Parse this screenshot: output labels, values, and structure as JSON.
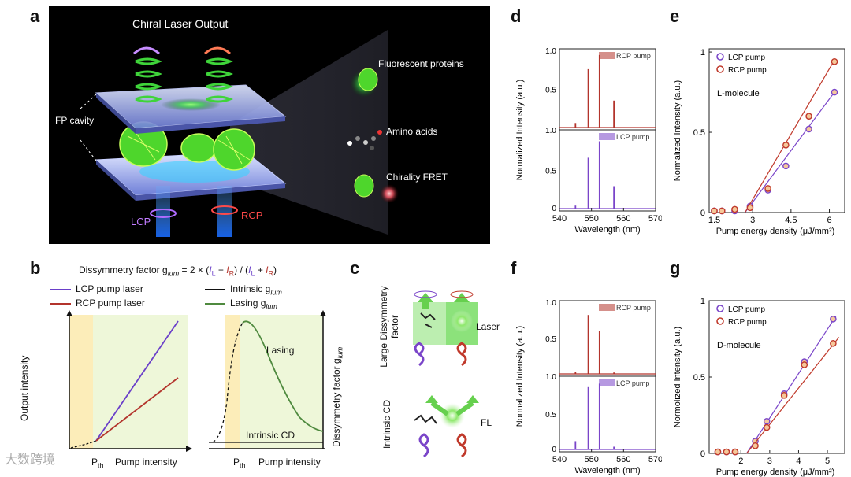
{
  "panels": {
    "a": "a",
    "b": "b",
    "c": "c",
    "d": "d",
    "e": "e",
    "f": "f",
    "g": "g"
  },
  "panel_a": {
    "title": "Chiral Laser Output",
    "cavity": "FP cavity",
    "fp": "Fluorescent proteins",
    "aa": "Amino acids",
    "fret": "Chirality FRET",
    "lcp": "LCP",
    "rcp": "RCP"
  },
  "panel_b": {
    "formula_prefix": "Dissymmetry factor g",
    "formula_sub": "lum",
    "formula_rest": " = 2 × (",
    "IL": "I",
    "IL_sub": "L",
    "minus": " − ",
    "IR": "I",
    "IR_sub": "R",
    "mid": ") / (",
    "plus": " + ",
    "end": ")",
    "legend_lcp": "LCP pump laser",
    "legend_rcp": "RCP pump laser",
    "legend_intrinsic": "Intrinsic g",
    "legend_lasing": "Lasing g",
    "legend_sub": "lum",
    "left_ylabel": "Output intensity",
    "left_xlabel": "Pump intensity",
    "left_pth": "P",
    "left_pth_sub": "th",
    "right_ylabel": "Dissymmetry factor  g",
    "right_ylabel_sub": "lum",
    "right_xlabel": "Pump intensity",
    "right_pth": "P",
    "right_pth_sub": "th",
    "lasing_label": "Lasing",
    "intrinsic_label": "Intrinsic CD",
    "colors": {
      "lcp": "#6a3fc9",
      "rcp": "#b3342c",
      "lasing": "#4f8a3f",
      "intrinsic": "#111111"
    }
  },
  "panel_c": {
    "top_label": "Large Dissymmetry factor",
    "top_right": "Laser",
    "bottom_label": "Intrinsic CD",
    "bottom_right": "FL"
  },
  "chart_data": [
    {
      "id": "d",
      "type": "line",
      "xlabel": "Wavelength (nm)",
      "ylabel": "Normalized Intensity (a.u.)",
      "xlim": [
        540,
        570
      ],
      "xticks": [
        "540",
        "550",
        "560",
        "570"
      ],
      "series": [
        {
          "name": "RCP pump",
          "color": "#b3342c",
          "peaks": [
            [
              545,
              0.06
            ],
            [
              549,
              0.78
            ],
            [
              552.5,
              0.97
            ],
            [
              557,
              0.36
            ]
          ]
        },
        {
          "name": "LCP pump",
          "color": "#7a45c9",
          "peaks": [
            [
              545,
              0.04
            ],
            [
              549,
              0.68
            ],
            [
              552.5,
              0.9
            ],
            [
              557,
              0.3
            ]
          ]
        }
      ],
      "yticks_top": [
        "1.0",
        "0.5"
      ],
      "yticks_bottom": [
        "1.0",
        "0.5",
        "0"
      ]
    },
    {
      "id": "e",
      "type": "scatter",
      "xlabel": "Pump energy density (μJ/mm²)",
      "ylabel": "Normalized Intensity (a.u.)",
      "annotation": "L-molecule",
      "xlim": [
        1.3,
        6.6
      ],
      "ylim": [
        0,
        1.02
      ],
      "xticks": [
        1.5,
        3,
        4.5,
        6
      ],
      "xtick_labels": [
        "1.5",
        "3",
        "4.5",
        "6"
      ],
      "yticks": [
        0,
        0.5,
        1
      ],
      "ytick_labels": [
        "0",
        "0.5",
        "1"
      ],
      "series": [
        {
          "name": "LCP pump",
          "color": "#7a45c9",
          "x": [
            1.5,
            1.8,
            2.3,
            2.9,
            3.6,
            4.3,
            5.2,
            6.2
          ],
          "y": [
            0.01,
            0.01,
            0.01,
            0.04,
            0.14,
            0.29,
            0.52,
            0.75
          ],
          "fit": [
            [
              2.7,
              0
            ],
            [
              6.2,
              0.75
            ]
          ]
        },
        {
          "name": "RCP pump",
          "color": "#c0392b",
          "x": [
            1.5,
            1.8,
            2.3,
            2.9,
            3.6,
            4.3,
            5.2,
            6.2
          ],
          "y": [
            0.01,
            0.01,
            0.02,
            0.03,
            0.15,
            0.42,
            0.6,
            0.94
          ],
          "fit": [
            [
              2.7,
              0
            ],
            [
              6.2,
              0.95
            ]
          ]
        }
      ]
    },
    {
      "id": "f",
      "type": "line",
      "xlabel": "Wavelength (nm)",
      "ylabel": "Normalized Intensity (a.u.)",
      "xlim": [
        540,
        570
      ],
      "xticks": [
        "540",
        "550",
        "560",
        "570"
      ],
      "series": [
        {
          "name": "RCP pump",
          "color": "#b3342c",
          "peaks": [
            [
              545,
              0.03
            ],
            [
              549,
              0.85
            ],
            [
              552.5,
              0.62
            ],
            [
              557,
              0.02
            ]
          ]
        },
        {
          "name": "LCP pump",
          "color": "#7a45c9",
          "peaks": [
            [
              545,
              0.12
            ],
            [
              549,
              0.9
            ],
            [
              552.5,
              0.95
            ],
            [
              557,
              0.04
            ]
          ]
        }
      ],
      "yticks_top": [
        "1.0",
        "0.5"
      ],
      "yticks_bottom": [
        "1.0",
        "0.5",
        "0"
      ]
    },
    {
      "id": "g",
      "type": "scatter",
      "xlabel": "Pump energy density (μJ/mm²)",
      "ylabel": "Normolized Intensity (a.u.)",
      "annotation": "D-molecule",
      "xlim": [
        0.9,
        5.6
      ],
      "ylim": [
        0,
        1.0
      ],
      "xticks": [
        2,
        3,
        4,
        5
      ],
      "xtick_labels": [
        "2",
        "3",
        "4",
        "5"
      ],
      "yticks": [
        0,
        0.5,
        1
      ],
      "ytick_labels": [
        "0",
        "0.5",
        "1"
      ],
      "series": [
        {
          "name": "LCP pump",
          "color": "#7a45c9",
          "x": [
            1.2,
            1.5,
            1.8,
            2.5,
            2.9,
            3.5,
            4.2,
            5.2
          ],
          "y": [
            0.01,
            0.01,
            0.01,
            0.08,
            0.21,
            0.39,
            0.6,
            0.88
          ],
          "fit": [
            [
              2.2,
              0
            ],
            [
              5.3,
              0.9
            ]
          ]
        },
        {
          "name": "RCP pump",
          "color": "#c0392b",
          "x": [
            1.2,
            1.5,
            1.8,
            2.5,
            2.9,
            3.5,
            4.2,
            5.2
          ],
          "y": [
            0.01,
            0.01,
            0.01,
            0.05,
            0.17,
            0.38,
            0.58,
            0.72
          ],
          "fit": [
            [
              2.2,
              0
            ],
            [
              5.4,
              0.76
            ]
          ]
        }
      ]
    }
  ],
  "watermark": "大数跨境"
}
